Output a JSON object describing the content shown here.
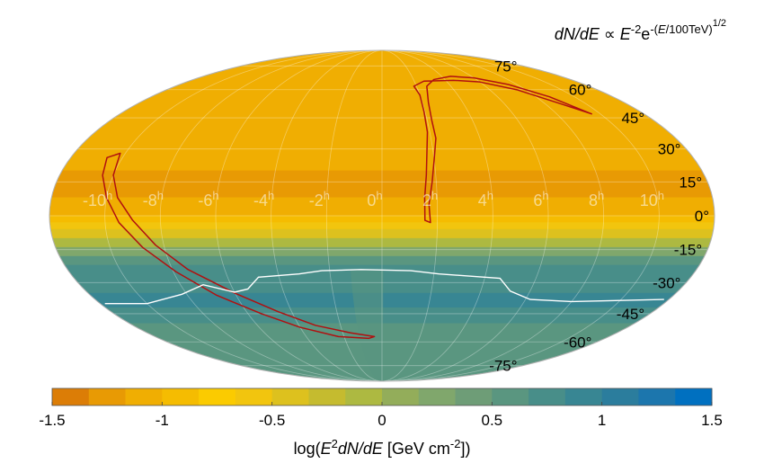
{
  "chart_data": {
    "type": "heatmap",
    "projection": "mollweide",
    "title": {
      "parts": [
        {
          "text": "dN/dE",
          "style": "italic"
        },
        {
          "text": " ∝ ",
          "style": "normal"
        },
        {
          "text": "E",
          "style": "italic"
        },
        {
          "text": "-2",
          "style": "sup"
        },
        {
          "text": "e",
          "style": "normal"
        },
        {
          "text": "-(",
          "style": "sup"
        },
        {
          "text": "E",
          "style": "sup-italic"
        },
        {
          "text": "/100TeV)",
          "style": "sup"
        },
        {
          "text": "1/2",
          "style": "supsup"
        }
      ]
    },
    "colorbar": {
      "range": [
        -1.5,
        1.5
      ],
      "levels": 18,
      "ticks": [
        "-1.5",
        "-1",
        "-0.5",
        "0",
        "0.5",
        "1",
        "1.5"
      ],
      "tick_values": [
        -1.5,
        -1,
        -0.5,
        0,
        0.5,
        1,
        1.5
      ],
      "label": {
        "parts": [
          {
            "text": "log(",
            "style": "normal"
          },
          {
            "text": "E",
            "style": "italic"
          },
          {
            "text": "2",
            "style": "sup"
          },
          {
            "text": "dN/dE",
            "style": "italic"
          },
          {
            "text": " [GeV cm",
            "style": "normal"
          },
          {
            "text": "-2",
            "style": "sup"
          },
          {
            "text": "])",
            "style": "normal"
          }
        ]
      },
      "colors": [
        "#dc7d06",
        "#e89a04",
        "#f0ae02",
        "#f5bc01",
        "#fbcb00",
        "#f2c50e",
        "#ddc11e",
        "#c5bb2f",
        "#adb941",
        "#93ad5a",
        "#80a76c",
        "#6e9d77",
        "#5a9680",
        "#488e89",
        "#388693",
        "#2b7d9d",
        "#1c76ad",
        "#0070c0"
      ]
    },
    "dec_bands": [
      {
        "dec_from": 90,
        "dec_to": 72,
        "value": -1.02
      },
      {
        "dec_from": 72,
        "dec_to": 60,
        "value": -1.03
      },
      {
        "dec_from": 60,
        "dec_to": 50,
        "value": -1.05
      },
      {
        "dec_from": 50,
        "dec_to": 40,
        "value": -1.12
      },
      {
        "dec_from": 40,
        "dec_to": 30,
        "value": -1.14
      },
      {
        "dec_from": 30,
        "dec_to": 20,
        "value": -1.15
      },
      {
        "dec_from": 20,
        "dec_to": 8,
        "value": -1.18
      },
      {
        "dec_from": 8,
        "dec_to": 0,
        "value": -1.1
      },
      {
        "dec_from": 0,
        "dec_to": -3,
        "value": -0.85
      },
      {
        "dec_from": -3,
        "dec_to": -6,
        "value": -0.62
      },
      {
        "dec_from": -6,
        "dec_to": -10,
        "value": -0.35
      },
      {
        "dec_from": -10,
        "dec_to": -14,
        "value": -0.05
      },
      {
        "dec_from": -14,
        "dec_to": -18,
        "value": 0.3
      },
      {
        "dec_from": -18,
        "dec_to": -22,
        "value": 0.55
      },
      {
        "dec_from": -22,
        "dec_to": -28,
        "value": 0.68
      },
      {
        "dec_from": -28,
        "dec_to": -35,
        "value": 0.82
      },
      {
        "dec_from": -35,
        "dec_to": -42,
        "value": 0.95
      },
      {
        "dec_from": -42,
        "dec_to": -50,
        "value": 0.72
      },
      {
        "dec_from": -50,
        "dec_to": -62,
        "value": 0.62
      },
      {
        "dec_from": -62,
        "dec_to": -90,
        "value": 0.6
      }
    ],
    "dec_ticks": [
      {
        "dec": 75,
        "label": "75°"
      },
      {
        "dec": 60,
        "label": "60°"
      },
      {
        "dec": 45,
        "label": "45°"
      },
      {
        "dec": 30,
        "label": "30°"
      },
      {
        "dec": 15,
        "label": "15°"
      },
      {
        "dec": 0,
        "label": "0°"
      },
      {
        "dec": -15,
        "label": "-15°"
      },
      {
        "dec": -30,
        "label": "-30°"
      },
      {
        "dec": -45,
        "label": "-45°"
      },
      {
        "dec": -60,
        "label": "-60°"
      },
      {
        "dec": -75,
        "label": "-75°"
      }
    ],
    "ra_ticks": [
      {
        "ra_h": 10,
        "label": "10",
        "sup": "h"
      },
      {
        "ra_h": 8,
        "label": "8",
        "sup": "h"
      },
      {
        "ra_h": 6,
        "label": "6",
        "sup": "h"
      },
      {
        "ra_h": 4,
        "label": "4",
        "sup": "h"
      },
      {
        "ra_h": 2,
        "label": "2",
        "sup": "h"
      },
      {
        "ra_h": 0,
        "label": "0",
        "sup": "h"
      },
      {
        "ra_h": -2,
        "label": "-2",
        "sup": "h"
      },
      {
        "ra_h": -4,
        "label": "-4",
        "sup": "h"
      },
      {
        "ra_h": -6,
        "label": "-6",
        "sup": "h"
      },
      {
        "ra_h": -8,
        "label": "-8",
        "sup": "h"
      },
      {
        "ra_h": -10,
        "label": "-10",
        "sup": "h"
      }
    ],
    "grid": {
      "dec_step": 15,
      "ra_step_h": 2
    },
    "galactic_plane_contours": [
      {
        "color": "#b01010",
        "points_ra_dec": [
          [
            9.6,
            47
          ],
          [
            8.7,
            56
          ],
          [
            7.5,
            63
          ],
          [
            6,
            67
          ],
          [
            4.6,
            68
          ],
          [
            3.3,
            66
          ],
          [
            2.6,
            62
          ],
          [
            2.3,
            53
          ],
          [
            2.2,
            44
          ],
          [
            2.2,
            35
          ],
          [
            2.0,
            25
          ],
          [
            1.85,
            15
          ],
          [
            1.7,
            5
          ],
          [
            1.75,
            -3
          ],
          [
            1.55,
            -2
          ],
          [
            1.55,
            8
          ],
          [
            1.65,
            18
          ],
          [
            1.75,
            28
          ],
          [
            1.9,
            38
          ],
          [
            1.95,
            48
          ],
          [
            2.0,
            57
          ],
          [
            1.85,
            62
          ],
          [
            2.6,
            65
          ],
          [
            4.5,
            65.5
          ],
          [
            6,
            64.5
          ],
          [
            7.5,
            60
          ],
          [
            8.8,
            52
          ],
          [
            9.6,
            47
          ]
        ]
      },
      {
        "color": "#b01010",
        "points_ra_dec": [
          [
            -10.2,
            28
          ],
          [
            -10.0,
            18
          ],
          [
            -9.6,
            8
          ],
          [
            -9.0,
            -2
          ],
          [
            -8.3,
            -13
          ],
          [
            -7.4,
            -24
          ],
          [
            -6.0,
            -35
          ],
          [
            -4.6,
            -44
          ],
          [
            -3.2,
            -51
          ],
          [
            -1.6,
            -55
          ],
          [
            -0.4,
            -57
          ],
          [
            -0.7,
            -58
          ],
          [
            -2.3,
            -57
          ],
          [
            -4.0,
            -52
          ],
          [
            -5.4,
            -45
          ],
          [
            -6.8,
            -36
          ],
          [
            -7.9,
            -25
          ],
          [
            -8.8,
            -14
          ],
          [
            -9.5,
            -3
          ],
          [
            -10.0,
            8
          ],
          [
            -10.4,
            18
          ],
          [
            -10.6,
            26
          ],
          [
            -10.2,
            28
          ]
        ]
      }
    ],
    "coverage_boundary": {
      "color": "#ffffff",
      "points_ra_dec": [
        [
          11.8,
          -38
        ],
        [
          8,
          -39
        ],
        [
          6.2,
          -38
        ],
        [
          5.2,
          -34
        ],
        [
          4.6,
          -28
        ],
        [
          2.2,
          -26
        ],
        [
          1.1,
          -24.5
        ],
        [
          -0.8,
          -24
        ],
        [
          -2.3,
          -24.5
        ],
        [
          -3.2,
          -26
        ],
        [
          -4.8,
          -27.5
        ],
        [
          -5.4,
          -33
        ],
        [
          -6.0,
          -34.5
        ],
        [
          -7.1,
          -31
        ],
        [
          -8.2,
          -35.5
        ],
        [
          -10.0,
          -40
        ],
        [
          -11.8,
          -40
        ]
      ]
    }
  }
}
